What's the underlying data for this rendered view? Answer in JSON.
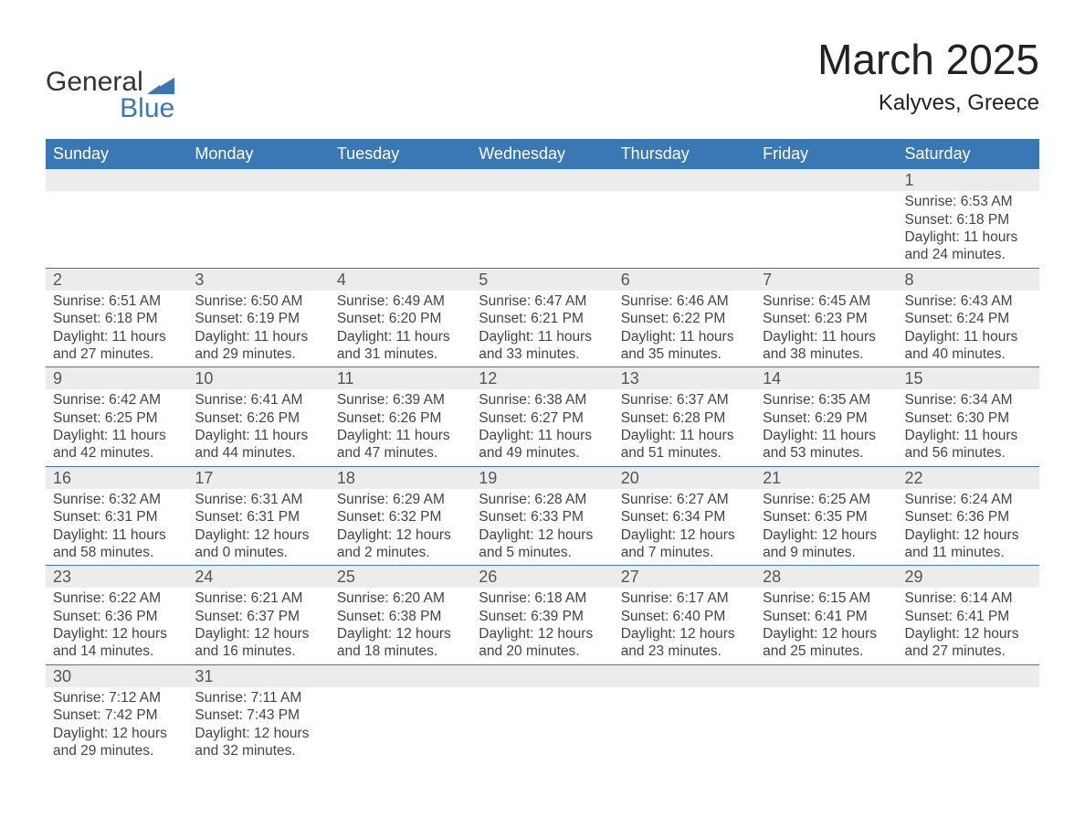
{
  "logo": {
    "text1": "General",
    "text2": "Blue",
    "color_text": "#333333",
    "color_blue": "#3a78b5"
  },
  "title": "March 2025",
  "location": "Kalyves, Greece",
  "header_bg": "#3a78b5",
  "header_fg": "#ffffff",
  "daynum_bg": "#ececec",
  "divider_color": "#3a78b5",
  "dow": [
    "Sunday",
    "Monday",
    "Tuesday",
    "Wednesday",
    "Thursday",
    "Friday",
    "Saturday"
  ],
  "first_dow_index": 6,
  "days": [
    {
      "n": 1,
      "sunrise": "6:53 AM",
      "sunset": "6:18 PM",
      "dl_h": 11,
      "dl_m": 24
    },
    {
      "n": 2,
      "sunrise": "6:51 AM",
      "sunset": "6:18 PM",
      "dl_h": 11,
      "dl_m": 27
    },
    {
      "n": 3,
      "sunrise": "6:50 AM",
      "sunset": "6:19 PM",
      "dl_h": 11,
      "dl_m": 29
    },
    {
      "n": 4,
      "sunrise": "6:49 AM",
      "sunset": "6:20 PM",
      "dl_h": 11,
      "dl_m": 31
    },
    {
      "n": 5,
      "sunrise": "6:47 AM",
      "sunset": "6:21 PM",
      "dl_h": 11,
      "dl_m": 33
    },
    {
      "n": 6,
      "sunrise": "6:46 AM",
      "sunset": "6:22 PM",
      "dl_h": 11,
      "dl_m": 35
    },
    {
      "n": 7,
      "sunrise": "6:45 AM",
      "sunset": "6:23 PM",
      "dl_h": 11,
      "dl_m": 38
    },
    {
      "n": 8,
      "sunrise": "6:43 AM",
      "sunset": "6:24 PM",
      "dl_h": 11,
      "dl_m": 40
    },
    {
      "n": 9,
      "sunrise": "6:42 AM",
      "sunset": "6:25 PM",
      "dl_h": 11,
      "dl_m": 42
    },
    {
      "n": 10,
      "sunrise": "6:41 AM",
      "sunset": "6:26 PM",
      "dl_h": 11,
      "dl_m": 44
    },
    {
      "n": 11,
      "sunrise": "6:39 AM",
      "sunset": "6:26 PM",
      "dl_h": 11,
      "dl_m": 47
    },
    {
      "n": 12,
      "sunrise": "6:38 AM",
      "sunset": "6:27 PM",
      "dl_h": 11,
      "dl_m": 49
    },
    {
      "n": 13,
      "sunrise": "6:37 AM",
      "sunset": "6:28 PM",
      "dl_h": 11,
      "dl_m": 51
    },
    {
      "n": 14,
      "sunrise": "6:35 AM",
      "sunset": "6:29 PM",
      "dl_h": 11,
      "dl_m": 53
    },
    {
      "n": 15,
      "sunrise": "6:34 AM",
      "sunset": "6:30 PM",
      "dl_h": 11,
      "dl_m": 56
    },
    {
      "n": 16,
      "sunrise": "6:32 AM",
      "sunset": "6:31 PM",
      "dl_h": 11,
      "dl_m": 58
    },
    {
      "n": 17,
      "sunrise": "6:31 AM",
      "sunset": "6:31 PM",
      "dl_h": 12,
      "dl_m": 0
    },
    {
      "n": 18,
      "sunrise": "6:29 AM",
      "sunset": "6:32 PM",
      "dl_h": 12,
      "dl_m": 2
    },
    {
      "n": 19,
      "sunrise": "6:28 AM",
      "sunset": "6:33 PM",
      "dl_h": 12,
      "dl_m": 5
    },
    {
      "n": 20,
      "sunrise": "6:27 AM",
      "sunset": "6:34 PM",
      "dl_h": 12,
      "dl_m": 7
    },
    {
      "n": 21,
      "sunrise": "6:25 AM",
      "sunset": "6:35 PM",
      "dl_h": 12,
      "dl_m": 9
    },
    {
      "n": 22,
      "sunrise": "6:24 AM",
      "sunset": "6:36 PM",
      "dl_h": 12,
      "dl_m": 11
    },
    {
      "n": 23,
      "sunrise": "6:22 AM",
      "sunset": "6:36 PM",
      "dl_h": 12,
      "dl_m": 14
    },
    {
      "n": 24,
      "sunrise": "6:21 AM",
      "sunset": "6:37 PM",
      "dl_h": 12,
      "dl_m": 16
    },
    {
      "n": 25,
      "sunrise": "6:20 AM",
      "sunset": "6:38 PM",
      "dl_h": 12,
      "dl_m": 18
    },
    {
      "n": 26,
      "sunrise": "6:18 AM",
      "sunset": "6:39 PM",
      "dl_h": 12,
      "dl_m": 20
    },
    {
      "n": 27,
      "sunrise": "6:17 AM",
      "sunset": "6:40 PM",
      "dl_h": 12,
      "dl_m": 23
    },
    {
      "n": 28,
      "sunrise": "6:15 AM",
      "sunset": "6:41 PM",
      "dl_h": 12,
      "dl_m": 25
    },
    {
      "n": 29,
      "sunrise": "6:14 AM",
      "sunset": "6:41 PM",
      "dl_h": 12,
      "dl_m": 27
    },
    {
      "n": 30,
      "sunrise": "7:12 AM",
      "sunset": "7:42 PM",
      "dl_h": 12,
      "dl_m": 29
    },
    {
      "n": 31,
      "sunrise": "7:11 AM",
      "sunset": "7:43 PM",
      "dl_h": 12,
      "dl_m": 32
    }
  ],
  "labels": {
    "sunrise": "Sunrise: ",
    "sunset": "Sunset: ",
    "daylight1": "Daylight: ",
    "hours_word": " hours",
    "and_word": "and ",
    "minutes_word": " minutes."
  }
}
